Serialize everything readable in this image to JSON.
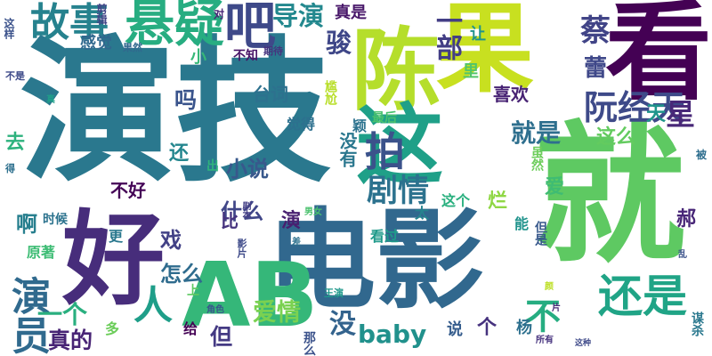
{
  "words": [
    {
      "text": "演技",
      "color": "#2a788e"
    },
    {
      "text": "就",
      "color": "#5ec962"
    },
    {
      "text": "电影",
      "color": "#31688e"
    },
    {
      "text": "AB",
      "color": "#35b779"
    },
    {
      "text": "果",
      "color": "#c8e020"
    },
    {
      "text": "看",
      "color": "#440154"
    },
    {
      "text": "陈",
      "color": "#b5de2b"
    },
    {
      "text": "好",
      "color": "#472d7b"
    },
    {
      "text": "这",
      "color": "#1fa088"
    },
    {
      "text": "悬疑",
      "color": "#27ad81"
    },
    {
      "text": "故事",
      "color": "#26828e"
    },
    {
      "text": "吧",
      "color": "#3e4989"
    },
    {
      "text": "拍",
      "color": "#3b528b"
    },
    {
      "text": "还是",
      "color": "#20a486"
    },
    {
      "text": "演员",
      "color": "#306a8e"
    },
    {
      "text": "人",
      "color": "#1f9e89"
    },
    {
      "text": "阮经天",
      "color": "#3e4a89"
    },
    {
      "text": "剧情",
      "color": "#2c728e"
    },
    {
      "text": "一部",
      "color": "#433e85"
    },
    {
      "text": "导演",
      "color": "#23888e"
    },
    {
      "text": "蔡",
      "color": "#414487"
    },
    {
      "text": "骏",
      "color": "#3f4788"
    },
    {
      "text": "星",
      "color": "#482878"
    },
    {
      "text": "就是",
      "color": "#2e6f8e"
    },
    {
      "text": "baby",
      "color": "#21918c"
    },
    {
      "text": "一个",
      "color": "#29af7f"
    },
    {
      "text": "不",
      "color": "#26ad81"
    },
    {
      "text": "没",
      "color": "#33638d"
    },
    {
      "text": "爱情",
      "color": "#7ad151"
    },
    {
      "text": "真的",
      "color": "#482475"
    },
    {
      "text": "但",
      "color": "#443a83"
    },
    {
      "text": "什么",
      "color": "#404688"
    },
    {
      "text": "小说",
      "color": "#38588c"
    },
    {
      "text": "台词",
      "color": "#2d718e"
    },
    {
      "text": "吗",
      "color": "#3a548c"
    },
    {
      "text": "喜欢",
      "color": "#482374"
    },
    {
      "text": "没有",
      "color": "#2a778e"
    },
    {
      "text": "蕾",
      "color": "#3f4889"
    },
    {
      "text": "天",
      "color": "#1f958b"
    },
    {
      "text": "这么",
      "color": "#63cb5f"
    },
    {
      "text": "郝",
      "color": "#482677"
    },
    {
      "text": "爱",
      "color": "#3fbc73"
    },
    {
      "text": "啊",
      "color": "#277f8e"
    },
    {
      "text": "戏",
      "color": "#424186"
    },
    {
      "text": "怎么",
      "color": "#2f6c8e"
    },
    {
      "text": "演",
      "color": "#481f70"
    },
    {
      "text": "个",
      "color": "#46327e"
    },
    {
      "text": "还",
      "color": "#24868e"
    },
    {
      "text": "去",
      "color": "#2db27d"
    },
    {
      "text": "不好",
      "color": "#440256"
    },
    {
      "text": "比",
      "color": "#46337e"
    },
    {
      "text": "烂",
      "color": "#8fd744"
    },
    {
      "text": "让",
      "color": "#20938c"
    },
    {
      "text": "里",
      "color": "#52c569"
    },
    {
      "text": "小",
      "color": "#37b878"
    },
    {
      "text": "真是",
      "color": "#481769"
    },
    {
      "text": "感觉",
      "color": "#30688e"
    },
    {
      "text": "觉得",
      "color": "#2d708e"
    },
    {
      "text": "最后",
      "color": "#4ac16d"
    },
    {
      "text": "尴尬",
      "color": "#b8de29"
    },
    {
      "text": "虽然",
      "color": "#6ccd5a"
    },
    {
      "text": "这个",
      "color": "#2ab07f"
    },
    {
      "text": "看过",
      "color": "#1f9a8a"
    },
    {
      "text": "太",
      "color": "#25848e"
    },
    {
      "text": "能",
      "color": "#20938c"
    },
    {
      "text": "说",
      "color": "#365d8d"
    },
    {
      "text": "杨",
      "color": "#2d708e"
    },
    {
      "text": "给",
      "color": "#440154"
    },
    {
      "text": "多",
      "color": "#6ccd5a"
    },
    {
      "text": "更",
      "color": "#2a788e"
    },
    {
      "text": "原著",
      "color": "#3dbc74"
    },
    {
      "text": "时候",
      "color": "#2c738e"
    },
    {
      "text": "上",
      "color": "#5ec962"
    },
    {
      "text": "那么",
      "color": "#3b528b"
    },
    {
      "text": "出",
      "color": "#2fb47c"
    },
    {
      "text": "颖",
      "color": "#2c728e"
    },
    {
      "text": "不知",
      "color": "#481467"
    },
    {
      "text": "期待",
      "color": "#46337e"
    },
    {
      "text": "果然",
      "color": "#31688e"
    },
    {
      "text": "剪辑",
      "color": "#414487"
    },
    {
      "text": "这样",
      "color": "#3b528b"
    },
    {
      "text": "对",
      "color": "#482475"
    },
    {
      "text": "不是",
      "color": "#3e4a89"
    },
    {
      "text": "得",
      "color": "#2d708e"
    },
    {
      "text": "真",
      "color": "#1f9e89"
    },
    {
      "text": "但是",
      "color": "#38598c"
    },
    {
      "text": "被",
      "color": "#2e6e8e"
    },
    {
      "text": "乱",
      "color": "#3b528b"
    },
    {
      "text": "谋杀",
      "color": "#2a788e"
    },
    {
      "text": "颜",
      "color": "#bddf26"
    },
    {
      "text": "角色",
      "color": "#39568c"
    },
    {
      "text": "王演",
      "color": "#1f988b"
    },
    {
      "text": "影片",
      "color": "#3e4a89"
    },
    {
      "text": "差",
      "color": "#2d718e"
    },
    {
      "text": "男女",
      "color": "#4ac16d"
    },
    {
      "text": "剧本",
      "color": "#433e85"
    },
    {
      "text": "片",
      "color": "#482878"
    },
    {
      "text": "所有",
      "color": "#46327e"
    },
    {
      "text": "这种",
      "color": "#3e4989"
    }
  ]
}
